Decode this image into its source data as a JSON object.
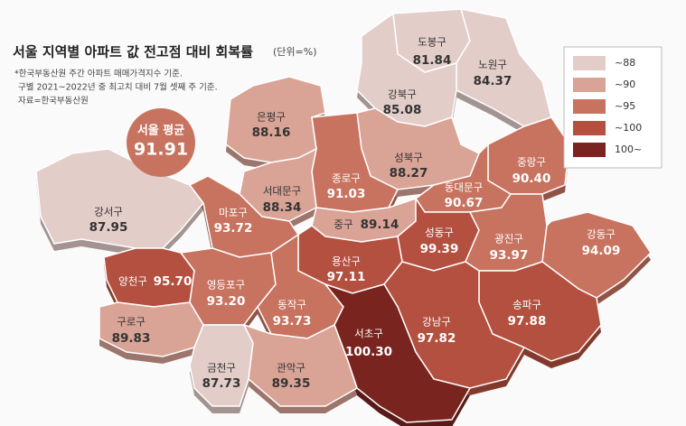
{
  "title": "서울 지역별 아파트 값 전고점 대비 회복률",
  "unit": "(단위=%)",
  "notes": [
    "*한국부동산원 주간 아파트 매매가격지수 기준.",
    "구별 2021~2022년 중 최고치 대비 7월 셋째 주 기준.",
    "자료=한국부동산원"
  ],
  "seoul_average": {
    "label": "서울 평균",
    "value": 91.91,
    "color": "#c8735f"
  },
  "legend": [
    {
      "label": "~88",
      "color": "#e2cdc9"
    },
    {
      "label": "~90",
      "color": "#d9a396"
    },
    {
      "label": "~95",
      "color": "#c8735f"
    },
    {
      "label": "~100",
      "color": "#b4503f"
    },
    {
      "label": "100~",
      "color": "#7a2420"
    }
  ],
  "districts": [
    {
      "name": "도봉구",
      "value": 81.84,
      "color": "#e2cdc9"
    },
    {
      "name": "노원구",
      "value": 84.37,
      "color": "#e2cdc9"
    },
    {
      "name": "강북구",
      "value": 85.08,
      "color": "#e2cdc9"
    },
    {
      "name": "은평구",
      "value": 88.16,
      "color": "#d9a396"
    },
    {
      "name": "성북구",
      "value": 88.27,
      "color": "#d9a396"
    },
    {
      "name": "종로구",
      "value": 91.03,
      "color": "#c8735f"
    },
    {
      "name": "중랑구",
      "value": 90.4,
      "value_label": "90.40",
      "color": "#c8735f"
    },
    {
      "name": "서대문구",
      "value": 88.34,
      "color": "#d9a396"
    },
    {
      "name": "동대문구",
      "value": 90.67,
      "color": "#c8735f"
    },
    {
      "name": "강서구",
      "value": 87.95,
      "color": "#e2cdc9"
    },
    {
      "name": "마포구",
      "value": 93.72,
      "color": "#c8735f"
    },
    {
      "name": "중구",
      "value": 89.14,
      "color": "#d9a396"
    },
    {
      "name": "성동구",
      "value": 99.39,
      "color": "#b4503f"
    },
    {
      "name": "광진구",
      "value": 93.97,
      "color": "#c8735f"
    },
    {
      "name": "강동구",
      "value": 94.09,
      "color": "#c8735f"
    },
    {
      "name": "용산구",
      "value": 97.11,
      "color": "#b4503f"
    },
    {
      "name": "양천구",
      "value": 95.7,
      "value_label": "95.70",
      "color": "#b4503f"
    },
    {
      "name": "영등포구",
      "value": 93.2,
      "value_label": "93.20",
      "color": "#c8735f"
    },
    {
      "name": "송파구",
      "value": 97.88,
      "color": "#b4503f"
    },
    {
      "name": "동작구",
      "value": 93.73,
      "color": "#c8735f"
    },
    {
      "name": "구로구",
      "value": 89.83,
      "color": "#d9a396"
    },
    {
      "name": "강남구",
      "value": 97.82,
      "color": "#b4503f"
    },
    {
      "name": "서초구",
      "value": 100.3,
      "value_label": "100.30",
      "color": "#7a2420"
    },
    {
      "name": "금천구",
      "value": 87.73,
      "color": "#e2cdc9"
    },
    {
      "name": "관악구",
      "value": 89.35,
      "color": "#d9a396"
    }
  ]
}
